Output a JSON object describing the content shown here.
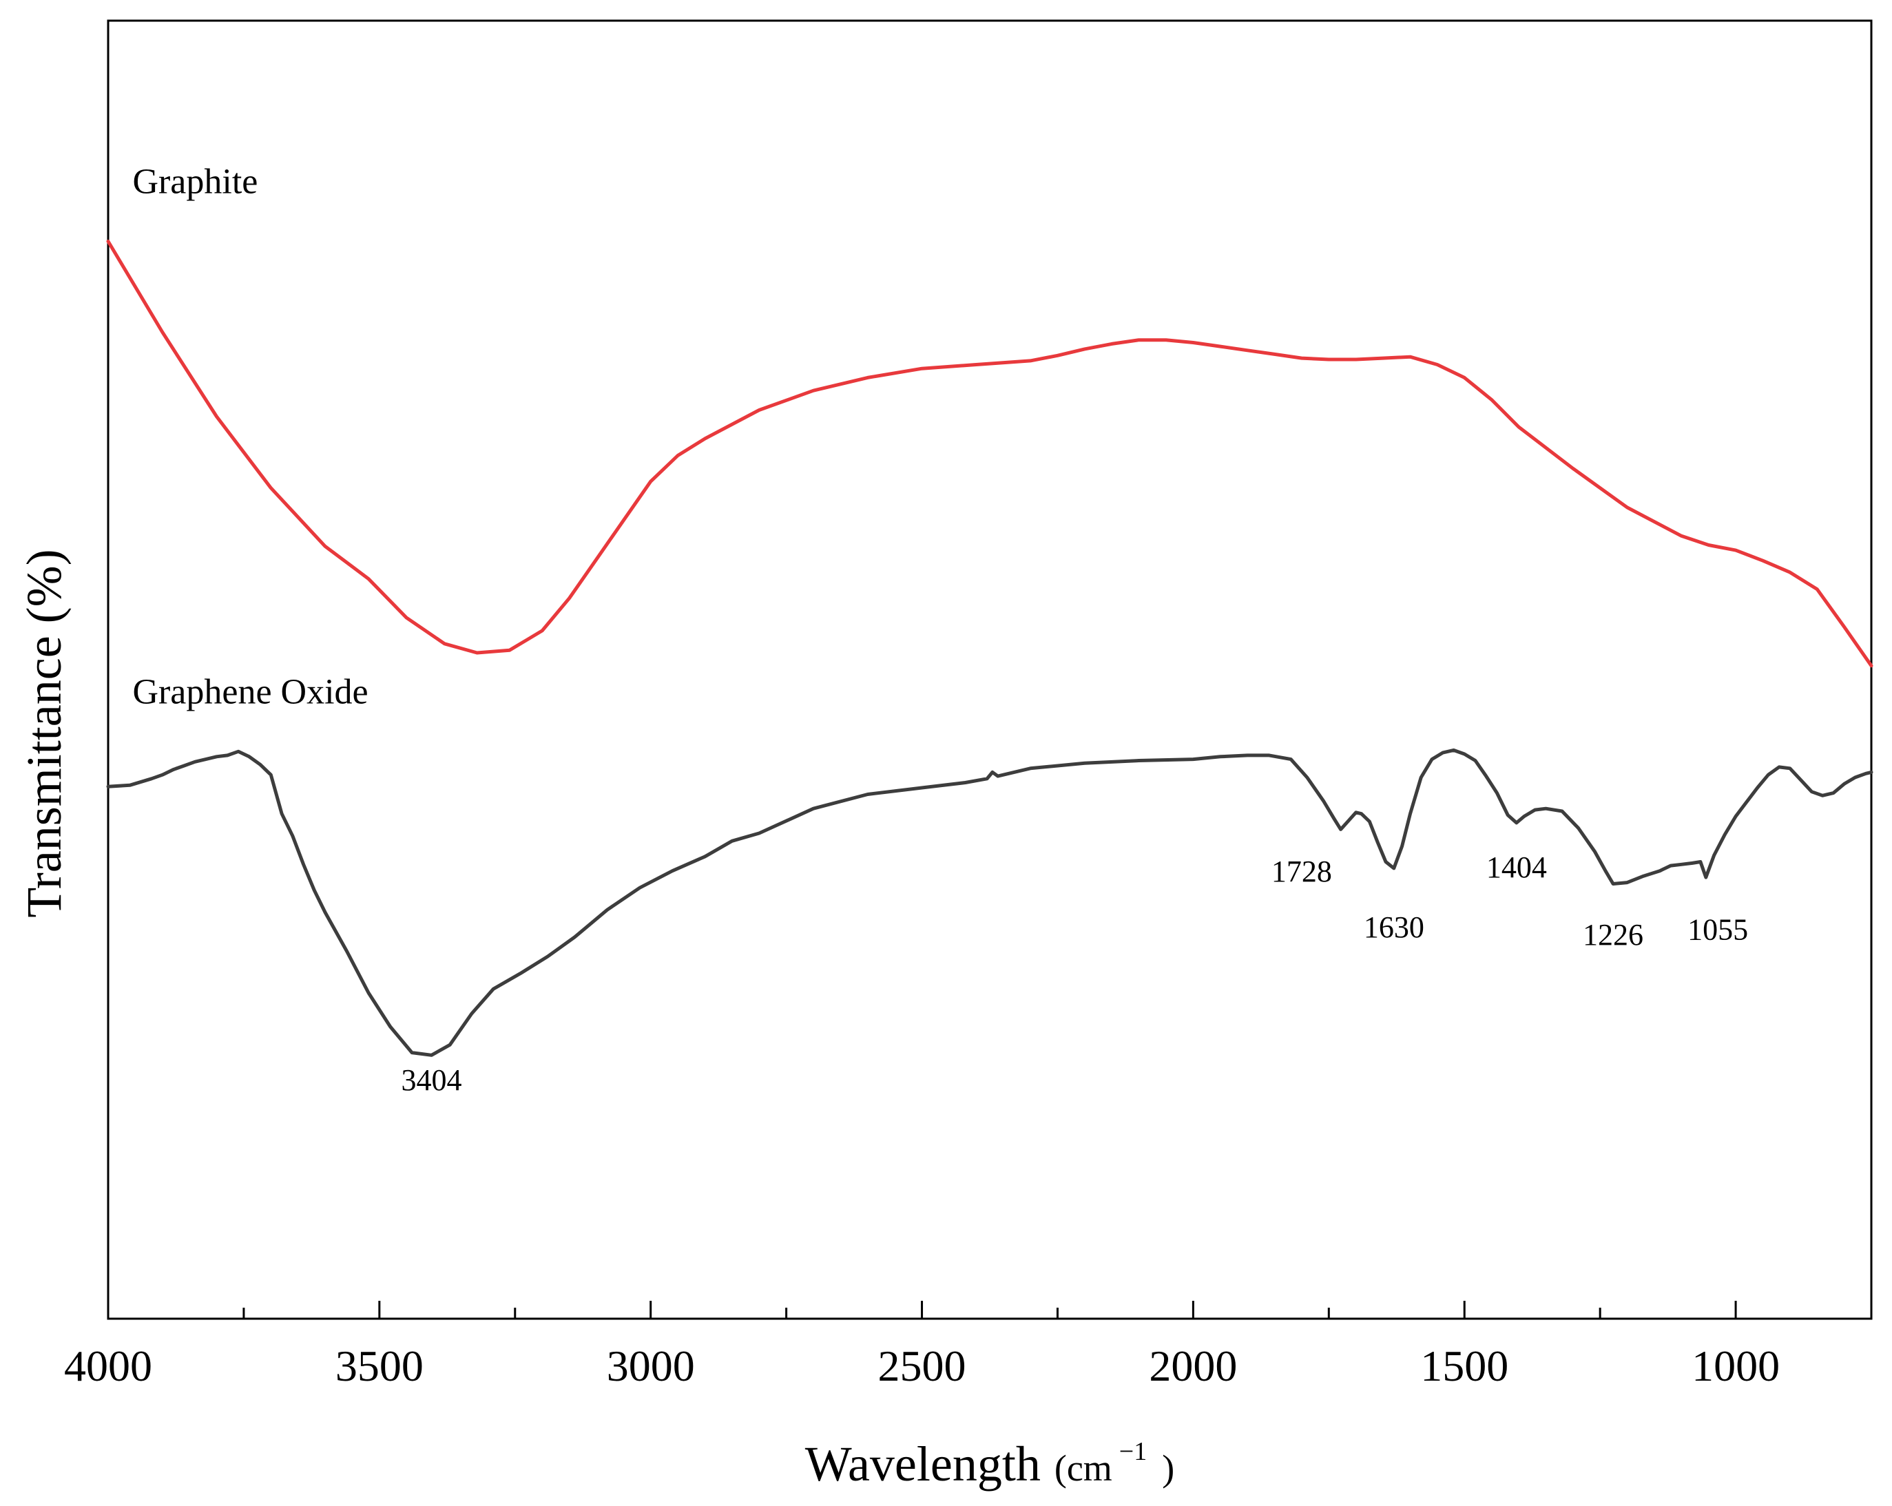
{
  "chart_data": {
    "type": "line",
    "title": "",
    "xlabel": "Wavelength",
    "xlabel_unit_prefix": "(cm",
    "xlabel_unit_sup": "−1",
    "xlabel_unit_suffix": ")",
    "ylabel": "Transmittance (%)",
    "xlim": [
      4000,
      750
    ],
    "ylim": [
      0,
      100
    ],
    "x_ticks": [
      4000,
      3500,
      3000,
      2500,
      2000,
      1500,
      1000
    ],
    "x_tick_labels": [
      "4000",
      "3500",
      "3000",
      "2500",
      "2000",
      "1500",
      "1000"
    ],
    "x_minor_ticks": [
      3750,
      3250,
      2750,
      2250,
      1750,
      1250
    ],
    "grid": false,
    "legend": "none",
    "series": [
      {
        "name": "Graphite",
        "color": "#e8393c",
        "x": [
          4000,
          3900,
          3800,
          3700,
          3600,
          3520,
          3450,
          3380,
          3320,
          3260,
          3200,
          3150,
          3100,
          3050,
          3000,
          2950,
          2900,
          2800,
          2700,
          2600,
          2500,
          2400,
          2300,
          2250,
          2200,
          2150,
          2100,
          2050,
          2000,
          1950,
          1900,
          1850,
          1800,
          1750,
          1700,
          1650,
          1600,
          1550,
          1500,
          1450,
          1400,
          1300,
          1200,
          1100,
          1050,
          1000,
          950,
          900,
          850,
          800,
          750
        ],
        "y": [
          83.0,
          76.0,
          69.5,
          64.0,
          59.5,
          57.0,
          54.0,
          52.0,
          51.3,
          51.5,
          53.0,
          55.5,
          58.5,
          61.5,
          64.5,
          66.5,
          67.8,
          70.0,
          71.5,
          72.5,
          73.2,
          73.5,
          73.8,
          74.2,
          74.7,
          75.1,
          75.4,
          75.4,
          75.2,
          74.9,
          74.6,
          74.3,
          74.0,
          73.9,
          73.9,
          74.0,
          74.1,
          73.5,
          72.5,
          70.8,
          68.7,
          65.5,
          62.5,
          60.3,
          59.6,
          59.2,
          58.4,
          57.5,
          56.2,
          53.3,
          50.3
        ],
        "label_x": 3955,
        "label_y": 86.7
      },
      {
        "name": "Graphene Oxide",
        "color": "#3d3d3d",
        "x": [
          4000,
          3960,
          3920,
          3900,
          3880,
          3860,
          3840,
          3820,
          3800,
          3780,
          3760,
          3740,
          3720,
          3700,
          3680,
          3660,
          3640,
          3620,
          3600,
          3560,
          3520,
          3480,
          3440,
          3404,
          3370,
          3330,
          3290,
          3240,
          3190,
          3140,
          3080,
          3020,
          2960,
          2900,
          2850,
          2800,
          2700,
          2600,
          2500,
          2420,
          2380,
          2370,
          2360,
          2340,
          2300,
          2200,
          2100,
          2000,
          1950,
          1900,
          1860,
          1820,
          1790,
          1760,
          1740,
          1728,
          1715,
          1700,
          1690,
          1675,
          1660,
          1645,
          1630,
          1615,
          1600,
          1580,
          1560,
          1540,
          1520,
          1500,
          1480,
          1460,
          1440,
          1420,
          1404,
          1390,
          1370,
          1350,
          1320,
          1290,
          1260,
          1240,
          1226,
          1200,
          1170,
          1140,
          1120,
          1100,
          1080,
          1065,
          1055,
          1040,
          1020,
          1000,
          980,
          960,
          940,
          920,
          900,
          880,
          860,
          840,
          820,
          800,
          780,
          760,
          750
        ],
        "y": [
          41.0,
          41.1,
          41.6,
          41.9,
          42.3,
          42.6,
          42.9,
          43.1,
          43.3,
          43.4,
          43.7,
          43.3,
          42.7,
          41.9,
          38.9,
          37.2,
          35.0,
          33.0,
          31.3,
          28.3,
          25.1,
          22.5,
          20.5,
          20.3,
          21.1,
          23.5,
          25.4,
          26.6,
          27.9,
          29.4,
          31.5,
          33.2,
          34.5,
          35.6,
          36.8,
          37.4,
          39.3,
          40.4,
          40.9,
          41.3,
          41.6,
          42.1,
          41.8,
          42.0,
          42.4,
          42.8,
          43.0,
          43.1,
          43.3,
          43.4,
          43.4,
          43.1,
          41.7,
          39.9,
          38.5,
          37.7,
          38.3,
          39.0,
          38.9,
          38.3,
          36.7,
          35.2,
          34.7,
          36.4,
          38.9,
          41.7,
          43.1,
          43.6,
          43.8,
          43.5,
          43.0,
          41.8,
          40.5,
          38.8,
          38.2,
          38.7,
          39.2,
          39.3,
          39.1,
          37.8,
          36.0,
          34.5,
          33.5,
          33.6,
          34.1,
          34.5,
          34.9,
          35.0,
          35.1,
          35.2,
          34.0,
          35.7,
          37.3,
          38.7,
          39.8,
          40.9,
          41.9,
          42.5,
          42.4,
          41.5,
          40.6,
          40.3,
          40.5,
          41.2,
          41.7,
          42.0,
          42.1
        ],
        "label_x": 3955,
        "label_y": 47.4
      }
    ],
    "annotations": [
      {
        "text": "3404",
        "x": 3404,
        "y": 17.6
      },
      {
        "text": "1728",
        "x": 1800,
        "y": 33.7
      },
      {
        "text": "1630",
        "x": 1630,
        "y": 29.4
      },
      {
        "text": "1404",
        "x": 1404,
        "y": 34.0
      },
      {
        "text": "1226",
        "x": 1226,
        "y": 28.8
      },
      {
        "text": "1055",
        "x": 1033,
        "y": 29.2
      }
    ]
  }
}
